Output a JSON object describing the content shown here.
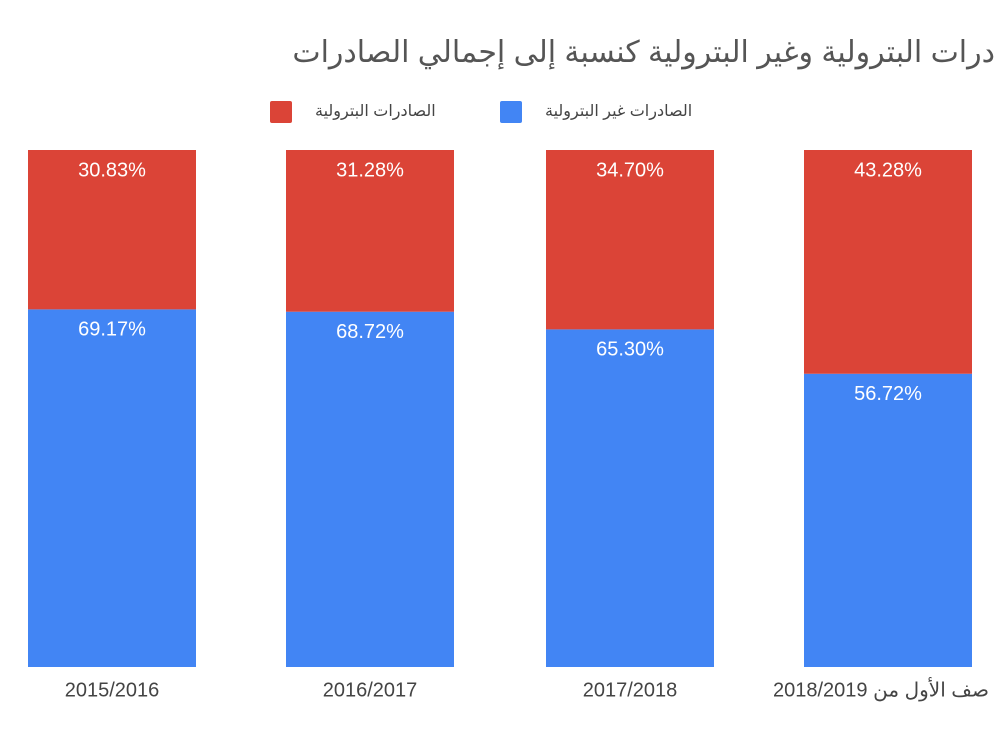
{
  "chart_data": {
    "type": "stacked_bar",
    "title": "درات البترولية وغير البترولية كنسبة إلى إجمالي الصادرات",
    "categories": [
      "2015/2016",
      "2016/2017",
      "2017/2018",
      "صف الأول من 2018/2019"
    ],
    "series": [
      {
        "name": "الصادرات غير البترولية",
        "color": "#4285f4",
        "values": [
          69.17,
          68.72,
          65.3,
          56.72
        ],
        "value_labels": [
          "69.17%",
          "68.72%",
          "65.30%",
          "56.72%"
        ]
      },
      {
        "name": "الصادرات البترولية",
        "color": "#db4437",
        "values": [
          30.83,
          31.28,
          34.7,
          43.28
        ],
        "value_labels": [
          "30.83%",
          "31.28%",
          "34.70%",
          "43.28%"
        ]
      }
    ],
    "ylim": [
      0,
      100
    ]
  }
}
